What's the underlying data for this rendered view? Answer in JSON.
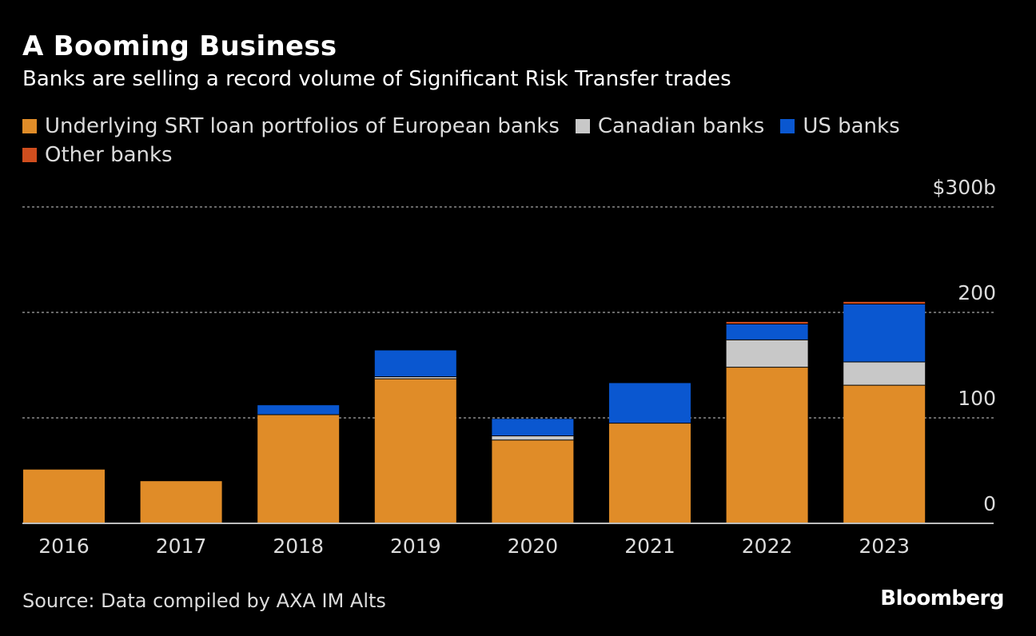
{
  "header": {
    "title": "A Booming Business",
    "subtitle": "Banks are selling a record volume of Significant Risk Transfer trades"
  },
  "chart_data": {
    "type": "bar",
    "stacked": true,
    "categories": [
      "2016",
      "2017",
      "2018",
      "2019",
      "2020",
      "2021",
      "2022",
      "2023"
    ],
    "series": [
      {
        "name": "Underlying SRT loan portfolios of European banks",
        "color": "#e08c28",
        "values": [
          51,
          40,
          103,
          137,
          79,
          95,
          148,
          131
        ]
      },
      {
        "name": "Canadian banks",
        "color": "#c8c8c8",
        "values": [
          0,
          0,
          0,
          2,
          4,
          0,
          26,
          22
        ]
      },
      {
        "name": "US banks",
        "color": "#0a57d0",
        "values": [
          0,
          0,
          9,
          25,
          16,
          38,
          15,
          55
        ]
      },
      {
        "name": "Other banks",
        "color": "#d04e1e",
        "values": [
          0,
          0,
          0,
          0,
          0,
          0,
          2,
          2
        ]
      }
    ],
    "y_ticks": [
      {
        "value": 0,
        "label": "0"
      },
      {
        "value": 100,
        "label": "100"
      },
      {
        "value": 200,
        "label": "200"
      },
      {
        "value": 300,
        "label": "$300b"
      }
    ],
    "ylim": [
      0,
      300
    ],
    "grid": true,
    "legend_position": "top-left"
  },
  "footer": {
    "source": "Source: Data compiled by AXA IM Alts",
    "brand": "Bloomberg"
  }
}
